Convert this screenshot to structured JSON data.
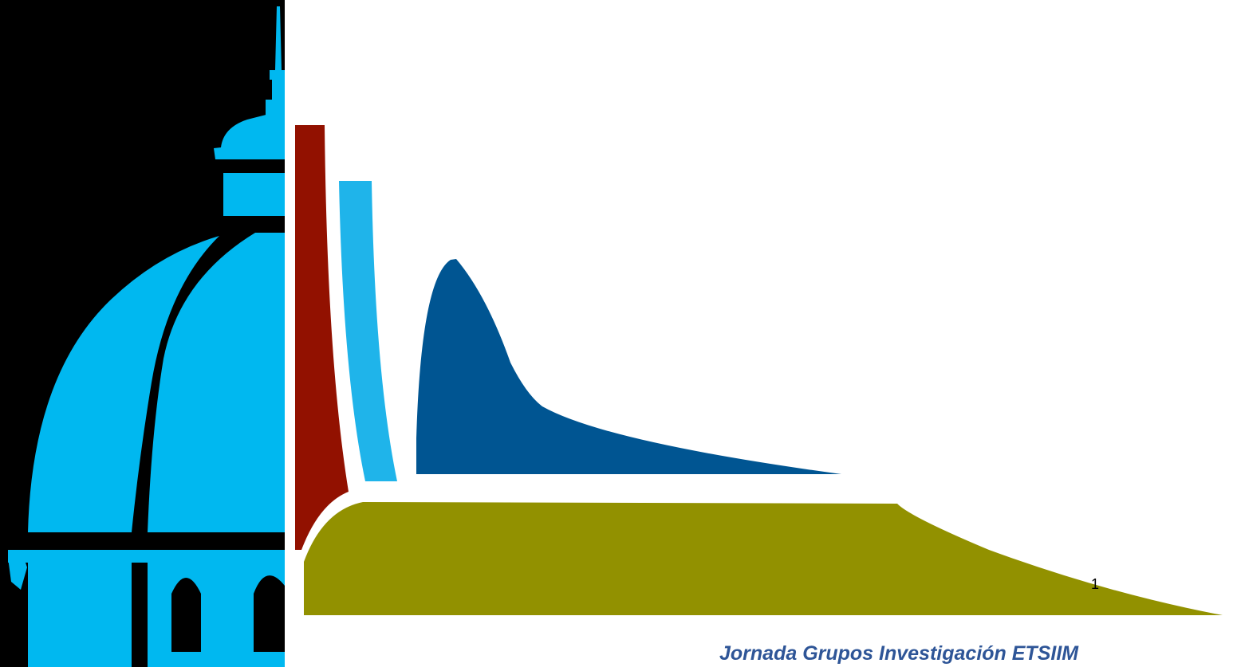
{
  "slide": {
    "page_number": "1",
    "footer_title": "Jornada Grupos Investigación ETSIIM"
  },
  "colors": {
    "background": "#ffffff",
    "dome_panel": "#000000",
    "dome": "#00b8f0",
    "bar_red": "#921100",
    "bar_light_blue": "#1fb4ea",
    "peak_blue": "#005592",
    "base_olive": "#929100",
    "footer_text": "#2e5597"
  },
  "icons": {
    "dome": "dome-building-icon"
  }
}
